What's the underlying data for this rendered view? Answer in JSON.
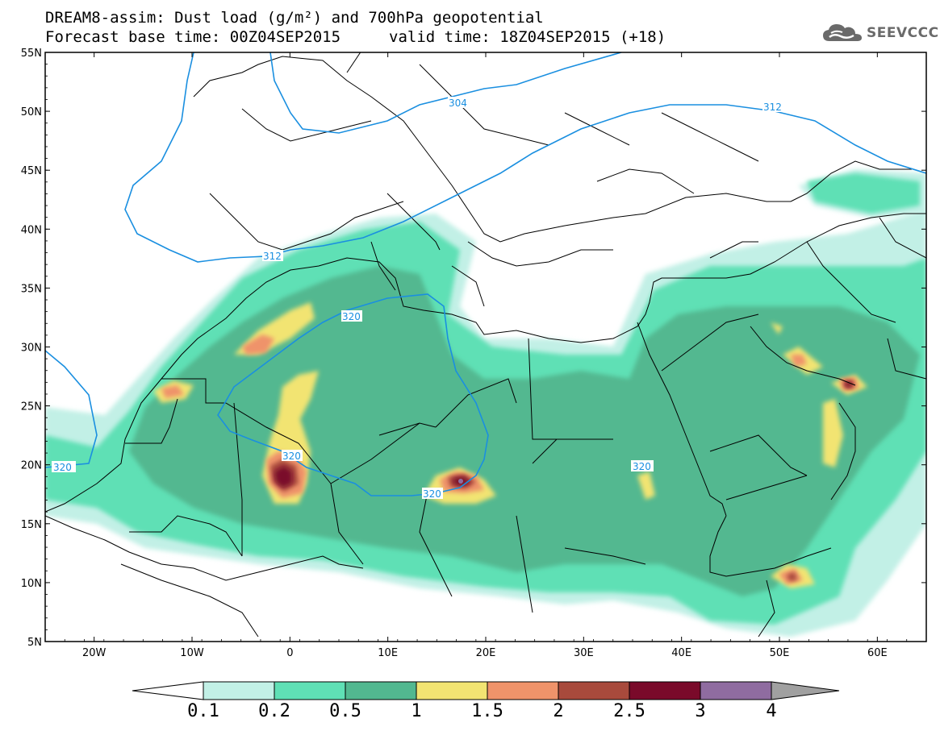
{
  "title": {
    "line1": "DREAM8-assim: Dust load (g/m²) and 700hPa geopotential",
    "base_time": "Forecast base time: 00Z04SEP2015",
    "valid_time": "valid time: 18Z04SEP2015 (+18)"
  },
  "logo": {
    "text": "SEEVCCC",
    "icon": "cloud-logo-icon"
  },
  "map": {
    "lon_range": [
      -25,
      65
    ],
    "lat_range": [
      5,
      55
    ],
    "lat_ticks": [
      "55N",
      "50N",
      "45N",
      "40N",
      "35N",
      "30N",
      "25N",
      "20N",
      "15N",
      "10N",
      "5N"
    ],
    "lon_ticks": [
      "20W",
      "10W",
      "0",
      "10E",
      "20E",
      "30E",
      "40E",
      "50E",
      "60E"
    ],
    "geopotential_labels": [
      "304",
      "312",
      "312",
      "320",
      "320",
      "320",
      "320",
      "320"
    ],
    "contour_color": "#1a8fe0"
  },
  "colorbar": {
    "levels": [
      "0.1",
      "0.2",
      "0.5",
      "1",
      "1.5",
      "2",
      "2.5",
      "3",
      "4"
    ],
    "colors": [
      "#c2f0e6",
      "#5fe0b5",
      "#52b890",
      "#f2e472",
      "#ef936a",
      "#a84a3c",
      "#7a0a2a",
      "#8f6ca0",
      "#a0a0a0"
    ],
    "under_color": "#ffffff"
  }
}
